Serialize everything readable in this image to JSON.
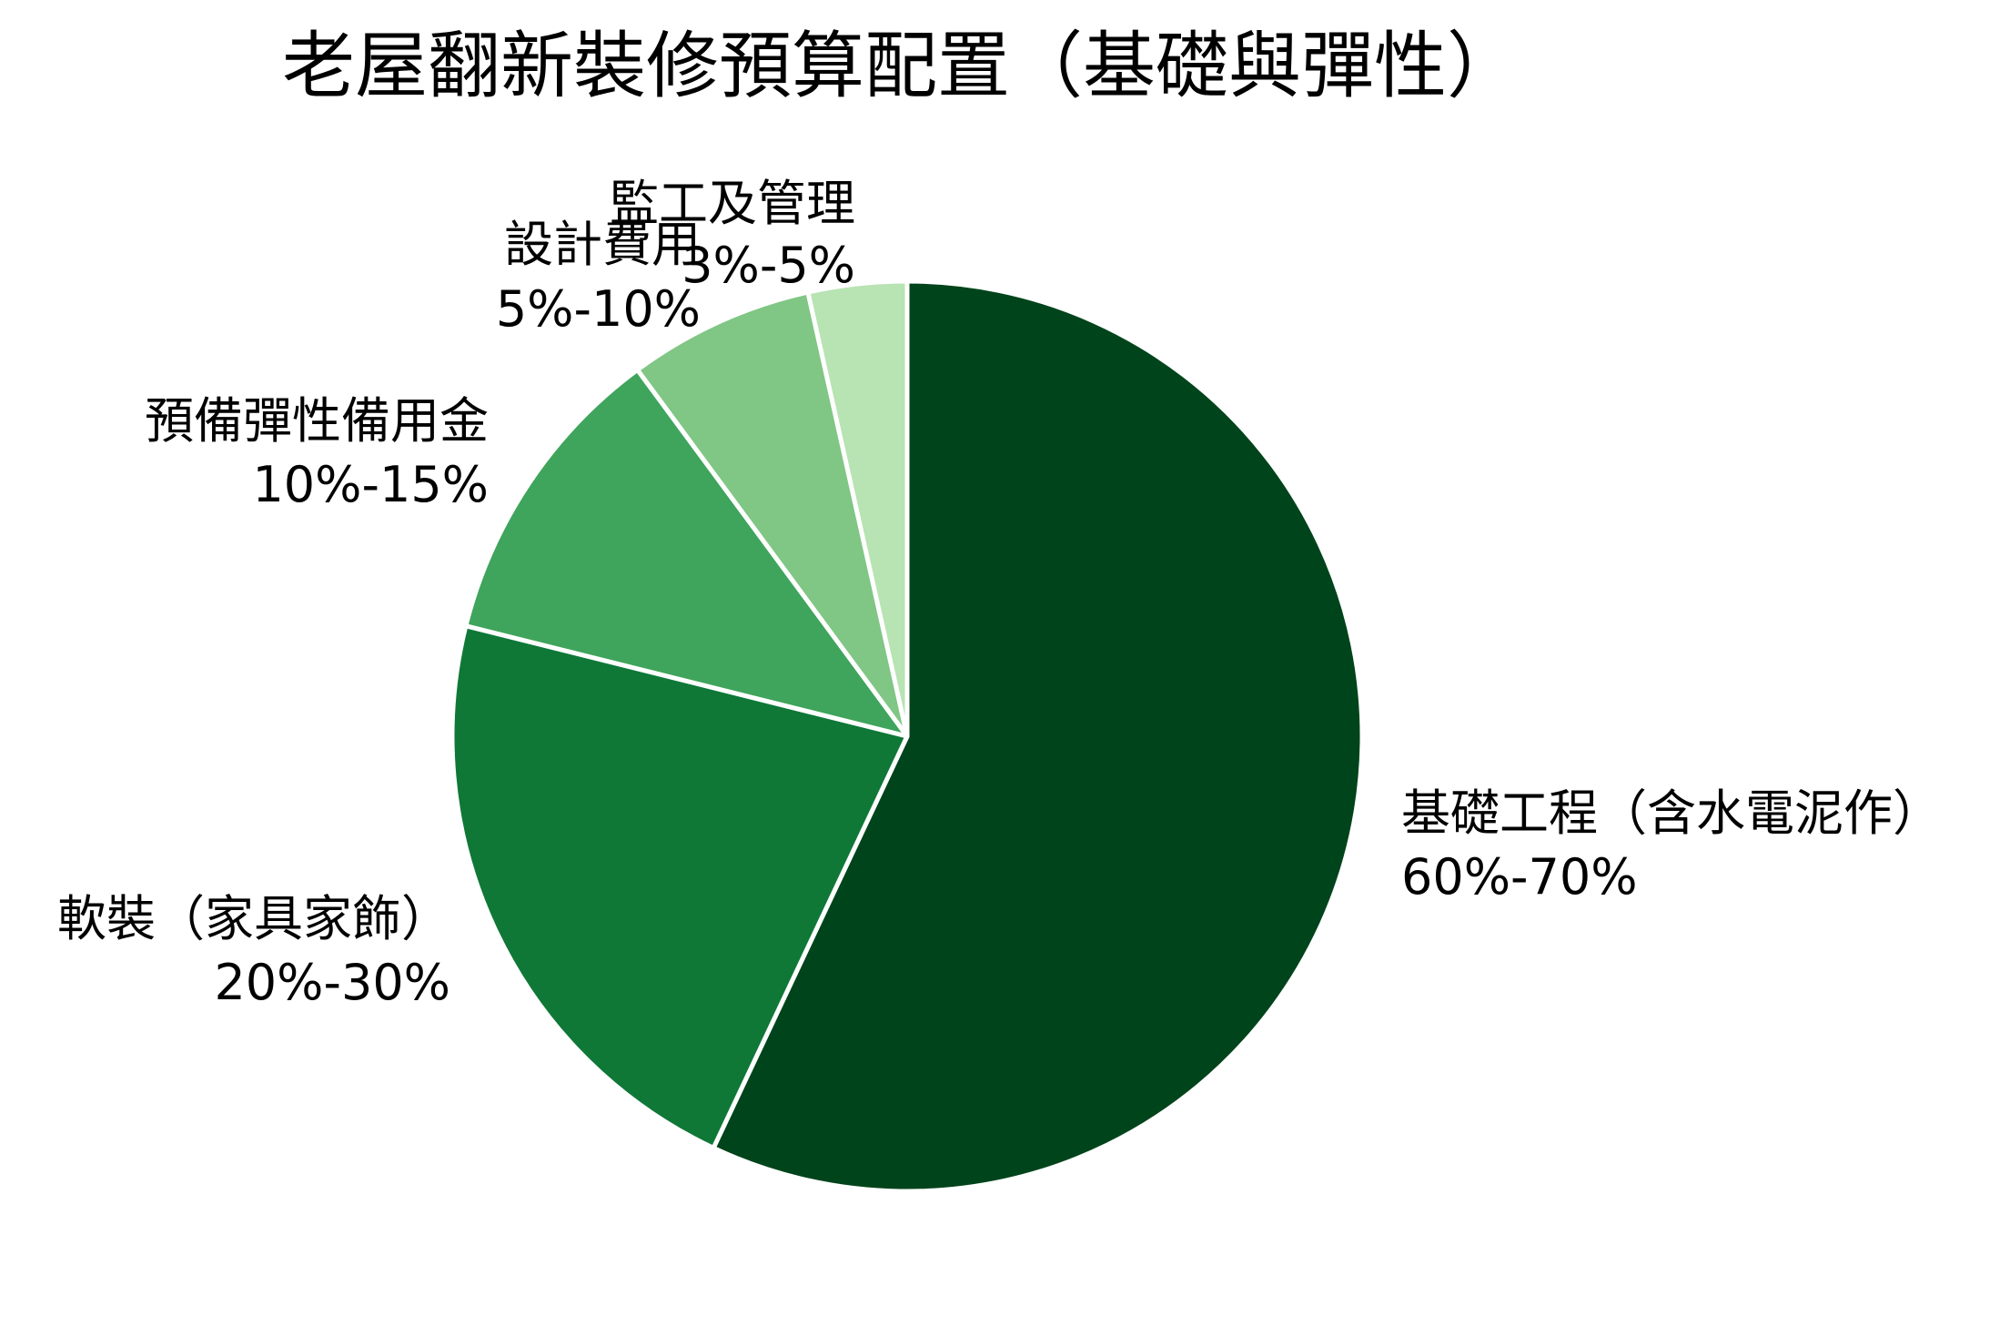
{
  "chart_data": {
    "type": "pie",
    "title": "老屋翻新裝修預算配置（基礎與彈性）",
    "start_angle": "top (12 o'clock), clockwise",
    "categories": [
      "基礎工程（含水電泥作）",
      "軟裝（家具家飾）",
      "預備彈性備用金",
      "設計費用",
      "監工及管理"
    ],
    "ranges": [
      "60%-70%",
      "20%-30%",
      "10%-15%",
      "5%-10%",
      "3%-5%"
    ],
    "values": [
      57.0,
      21.9,
      11.0,
      6.6,
      3.5
    ],
    "colors": [
      "#00441b",
      "#0f7837",
      "#3fa45c",
      "#80c684",
      "#b8e3b3"
    ],
    "legend": "none (labels outside slices)",
    "slice_border": "#ffffff"
  },
  "title": "老屋翻新裝修預算配置（基礎與彈性）",
  "labels": [
    {
      "name": "基礎工程（含水電泥作）",
      "range": "60%-70%"
    },
    {
      "name": "軟裝（家具家飾）",
      "range": "20%-30%"
    },
    {
      "name": "預備彈性備用金",
      "range": "10%-15%"
    },
    {
      "name": "設計費用",
      "range": "5%-10%"
    },
    {
      "name": "監工及管理",
      "range": "3%-5%"
    }
  ]
}
